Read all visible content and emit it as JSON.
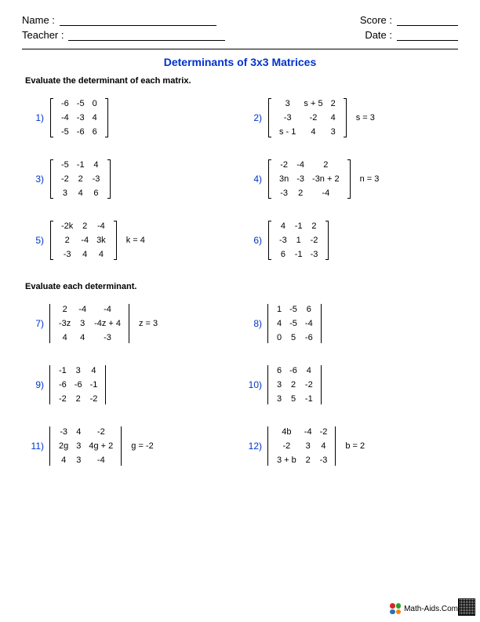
{
  "header": {
    "name_label": "Name :",
    "teacher_label": "Teacher :",
    "score_label": "Score :",
    "date_label": "Date :"
  },
  "title": "Determinants of 3x3 Matrices",
  "section1_instr": "Evaluate the determinant of each matrix.",
  "section2_instr": "Evaluate each determinant.",
  "colors": {
    "accent": "#0033cc",
    "text": "#000000",
    "background": "#ffffff"
  },
  "problems_section1": [
    {
      "num": "1)",
      "delim": "bracket",
      "cond": "",
      "rows": [
        [
          "-6",
          "-5",
          "0"
        ],
        [
          "-4",
          "-3",
          "4"
        ],
        [
          "-5",
          "-6",
          "6"
        ]
      ]
    },
    {
      "num": "2)",
      "delim": "bracket",
      "cond": "s = 3",
      "rows": [
        [
          "3",
          "s + 5",
          "2"
        ],
        [
          "-3",
          "-2",
          "4"
        ],
        [
          "s - 1",
          "4",
          "3"
        ]
      ]
    },
    {
      "num": "3)",
      "delim": "bracket",
      "cond": "",
      "rows": [
        [
          "-5",
          "-1",
          "4"
        ],
        [
          "-2",
          "2",
          "-3"
        ],
        [
          "3",
          "4",
          "6"
        ]
      ]
    },
    {
      "num": "4)",
      "delim": "bracket",
      "cond": "n = 3",
      "rows": [
        [
          "-2",
          "-4",
          "2"
        ],
        [
          "3n",
          "-3",
          "-3n + 2"
        ],
        [
          "-3",
          "2",
          "-4"
        ]
      ]
    },
    {
      "num": "5)",
      "delim": "bracket",
      "cond": "k = 4",
      "rows": [
        [
          "-2k",
          "2",
          "-4"
        ],
        [
          "2",
          "-4",
          "3k"
        ],
        [
          "-3",
          "4",
          "4"
        ]
      ]
    },
    {
      "num": "6)",
      "delim": "bracket",
      "cond": "",
      "rows": [
        [
          "4",
          "-1",
          "2"
        ],
        [
          "-3",
          "1",
          "-2"
        ],
        [
          "6",
          "-1",
          "-3"
        ]
      ]
    }
  ],
  "problems_section2": [
    {
      "num": "7)",
      "delim": "bar",
      "cond": "z = 3",
      "rows": [
        [
          "2",
          "-4",
          "-4"
        ],
        [
          "-3z",
          "3",
          "-4z + 4"
        ],
        [
          "4",
          "4",
          "-3"
        ]
      ]
    },
    {
      "num": "8)",
      "delim": "bar",
      "cond": "",
      "rows": [
        [
          "1",
          "-5",
          "6"
        ],
        [
          "4",
          "-5",
          "-4"
        ],
        [
          "0",
          "5",
          "-6"
        ]
      ]
    },
    {
      "num": "9)",
      "delim": "bar",
      "cond": "",
      "rows": [
        [
          "-1",
          "3",
          "4"
        ],
        [
          "-6",
          "-6",
          "-1"
        ],
        [
          "-2",
          "2",
          "-2"
        ]
      ]
    },
    {
      "num": "10)",
      "delim": "bar",
      "cond": "",
      "rows": [
        [
          "6",
          "-6",
          "4"
        ],
        [
          "3",
          "2",
          "-2"
        ],
        [
          "3",
          "5",
          "-1"
        ]
      ]
    },
    {
      "num": "11)",
      "delim": "bar",
      "cond": "g = -2",
      "rows": [
        [
          "-3",
          "4",
          "-2"
        ],
        [
          "2g",
          "3",
          "4g + 2"
        ],
        [
          "4",
          "3",
          "-4"
        ]
      ]
    },
    {
      "num": "12)",
      "delim": "bar",
      "cond": "b = 2",
      "rows": [
        [
          "4b",
          "-4",
          "-2"
        ],
        [
          "-2",
          "3",
          "4"
        ],
        [
          "3 + b",
          "2",
          "-3"
        ]
      ]
    }
  ],
  "footer": {
    "site": "Math-Aids.Com",
    "dot_colors": [
      "#d62728",
      "#2ca02c",
      "#1f77b4",
      "#ff7f0e"
    ]
  }
}
